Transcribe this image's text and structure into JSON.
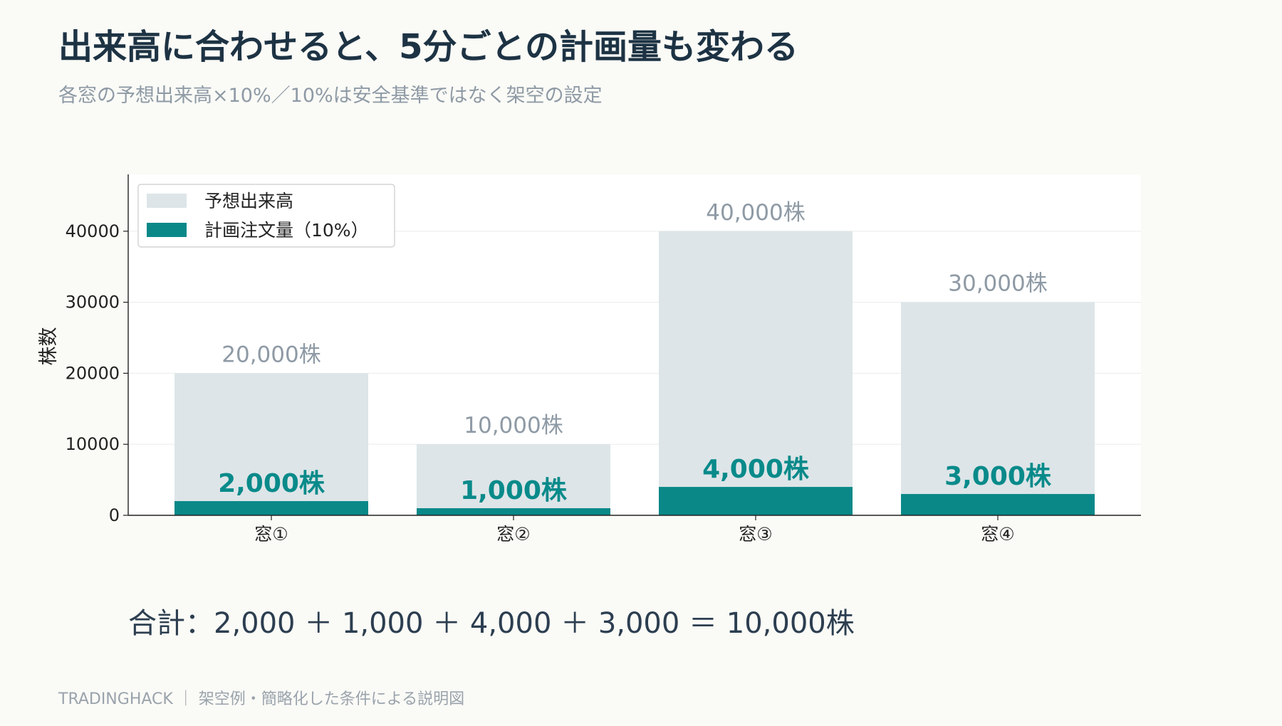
{
  "header": {
    "title": "出来高に合わせると、5分ごとの計画量も変わる",
    "subtitle": "各窓の予想出来高×10%／10%は安全基準ではなく架空の設定"
  },
  "colors": {
    "volume_bar": "#dde5e8",
    "plan_bar": "#0a8888",
    "plan_label": "#098a8a",
    "volume_label": "#8e9aa5"
  },
  "chart_data": {
    "type": "bar",
    "categories": [
      "窓①",
      "窓②",
      "窓③",
      "窓④"
    ],
    "series": [
      {
        "name": "予想出来高",
        "values": [
          20000,
          10000,
          40000,
          30000
        ]
      },
      {
        "name": "計画注文量（10%）",
        "values": [
          2000,
          1000,
          4000,
          3000
        ]
      }
    ],
    "volume_labels": [
      "20,000株",
      "10,000株",
      "40,000株",
      "30,000株"
    ],
    "plan_labels": [
      "2,000株",
      "1,000株",
      "4,000株",
      "3,000株"
    ],
    "ylabel": "株数",
    "yticks": [
      0,
      10000,
      20000,
      30000,
      40000
    ],
    "ylim": [
      0,
      48000
    ],
    "grid": true,
    "legend_position": "top-left",
    "overlay": true
  },
  "summary": {
    "total_text": "合計：2,000 ＋ 1,000 ＋ 4,000 ＋ 3,000 ＝ 10,000株"
  },
  "footer": {
    "text": "TRADINGHACK ｜ 架空例・簡略化した条件による説明図"
  }
}
